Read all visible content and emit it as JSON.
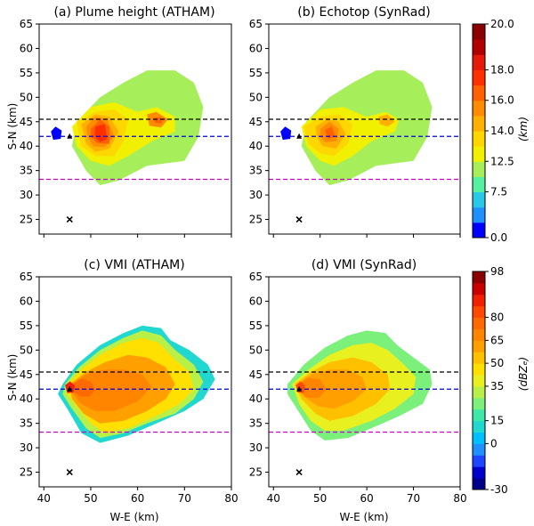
{
  "chart_data": [
    {
      "type": "heatmap",
      "title": "(a) Plume height (ATHAM)",
      "xlabel": "",
      "ylabel": "S-N (km)",
      "xlim": [
        39,
        80
      ],
      "ylim": [
        22,
        65
      ],
      "xticks": [
        "40",
        "50",
        "60",
        "70",
        "80"
      ],
      "yticks": [
        "25",
        "30",
        "35",
        "40",
        "45",
        "50",
        "55",
        "60",
        "65"
      ],
      "show_xticklabels": false,
      "colorscale": "height",
      "lines": [
        {
          "y": 45.5,
          "color": "#000000"
        },
        {
          "y": 42,
          "color": "#0000dd"
        },
        {
          "y": 33.2,
          "color": "#cc00cc"
        }
      ],
      "markers": [
        {
          "x": 45.5,
          "y": 25,
          "symbol": "x"
        },
        {
          "x": 45.5,
          "y": 42,
          "symbol": "triangle"
        }
      ],
      "field": "plume_height"
    },
    {
      "type": "heatmap",
      "title": "(b) Echotop (SynRad)",
      "xlabel": "",
      "ylabel": "",
      "xlim": [
        39,
        80
      ],
      "ylim": [
        22,
        65
      ],
      "xticks": [
        "40",
        "50",
        "60",
        "70",
        "80"
      ],
      "yticks": [
        "25",
        "30",
        "35",
        "40",
        "45",
        "50",
        "55",
        "60",
        "65"
      ],
      "show_xticklabels": false,
      "colorscale": "height",
      "lines": [
        {
          "y": 45.5,
          "color": "#000000"
        },
        {
          "y": 42,
          "color": "#0000dd"
        },
        {
          "y": 33.2,
          "color": "#cc00cc"
        }
      ],
      "markers": [
        {
          "x": 45.5,
          "y": 25,
          "symbol": "x"
        },
        {
          "x": 45.5,
          "y": 42,
          "symbol": "triangle"
        }
      ],
      "field": "echotop"
    },
    {
      "type": "heatmap",
      "title": "(c) VMI (ATHAM)",
      "xlabel": "W-E (km)",
      "ylabel": "S-N (km)",
      "xlim": [
        39,
        80
      ],
      "ylim": [
        22,
        65
      ],
      "xticks": [
        "40",
        "50",
        "60",
        "70",
        "80"
      ],
      "yticks": [
        "25",
        "30",
        "35",
        "40",
        "45",
        "50",
        "55",
        "60",
        "65"
      ],
      "show_xticklabels": true,
      "colorscale": "reflectivity",
      "lines": [
        {
          "y": 45.5,
          "color": "#000000"
        },
        {
          "y": 42,
          "color": "#0000dd"
        },
        {
          "y": 33.2,
          "color": "#cc00cc"
        }
      ],
      "markers": [
        {
          "x": 45.5,
          "y": 25,
          "symbol": "x"
        },
        {
          "x": 45.5,
          "y": 42,
          "symbol": "triangle"
        }
      ],
      "field": "vmi_atham"
    },
    {
      "type": "heatmap",
      "title": "(d) VMI (SynRad)",
      "xlabel": "W-E (km)",
      "ylabel": "",
      "xlim": [
        39,
        80
      ],
      "ylim": [
        22,
        65
      ],
      "xticks": [
        "40",
        "50",
        "60",
        "70",
        "80"
      ],
      "yticks": [
        "25",
        "30",
        "35",
        "40",
        "45",
        "50",
        "55",
        "60",
        "65"
      ],
      "show_xticklabels": true,
      "colorscale": "reflectivity",
      "lines": [
        {
          "y": 45.5,
          "color": "#000000"
        },
        {
          "y": 42,
          "color": "#0000dd"
        },
        {
          "y": 33.2,
          "color": "#cc00cc"
        }
      ],
      "markers": [
        {
          "x": 45.5,
          "y": 25,
          "symbol": "x"
        },
        {
          "x": 45.5,
          "y": 42,
          "symbol": "triangle"
        }
      ],
      "field": "vmi_synrad"
    }
  ],
  "colorbars": {
    "height": {
      "label": "(km)",
      "ticks": [
        "0.0",
        "7.5",
        "12.5",
        "14.0",
        "16.0",
        "18.0",
        "20.0"
      ],
      "bands": [
        {
          "color": "#0000ff"
        },
        {
          "color": "#1e90ff"
        },
        {
          "color": "#28c8e6"
        },
        {
          "color": "#55f0a0"
        },
        {
          "color": "#a6ef5a"
        },
        {
          "color": "#f0f000"
        },
        {
          "color": "#ffd700"
        },
        {
          "color": "#ffb000"
        },
        {
          "color": "#ff8c00"
        },
        {
          "color": "#ff6000"
        },
        {
          "color": "#ff3000"
        },
        {
          "color": "#e61a0a"
        },
        {
          "color": "#b00000"
        },
        {
          "color": "#8b0000"
        }
      ],
      "tick_positions": [
        0,
        3,
        5,
        7,
        9,
        11,
        14
      ]
    },
    "reflectivity": {
      "label": "(dBZₑ)",
      "ticks": [
        "-30",
        "0",
        "15",
        "35",
        "50",
        "65",
        "80",
        "98"
      ],
      "bands": [
        {
          "color": "#00008b"
        },
        {
          "color": "#0000cd"
        },
        {
          "color": "#1e46ff"
        },
        {
          "color": "#1e90ff"
        },
        {
          "color": "#00bfff"
        },
        {
          "color": "#20d8d0"
        },
        {
          "color": "#3ee8a8"
        },
        {
          "color": "#7bf07b"
        },
        {
          "color": "#b8f048"
        },
        {
          "color": "#e8f020"
        },
        {
          "color": "#ffe000"
        },
        {
          "color": "#ffc000"
        },
        {
          "color": "#ffa000"
        },
        {
          "color": "#ff8400"
        },
        {
          "color": "#ff6a00"
        },
        {
          "color": "#ff4800"
        },
        {
          "color": "#f02000"
        },
        {
          "color": "#c80000"
        },
        {
          "color": "#8b0000"
        }
      ],
      "tick_positions": [
        0,
        4,
        6,
        9,
        11,
        13,
        15,
        19
      ]
    }
  }
}
